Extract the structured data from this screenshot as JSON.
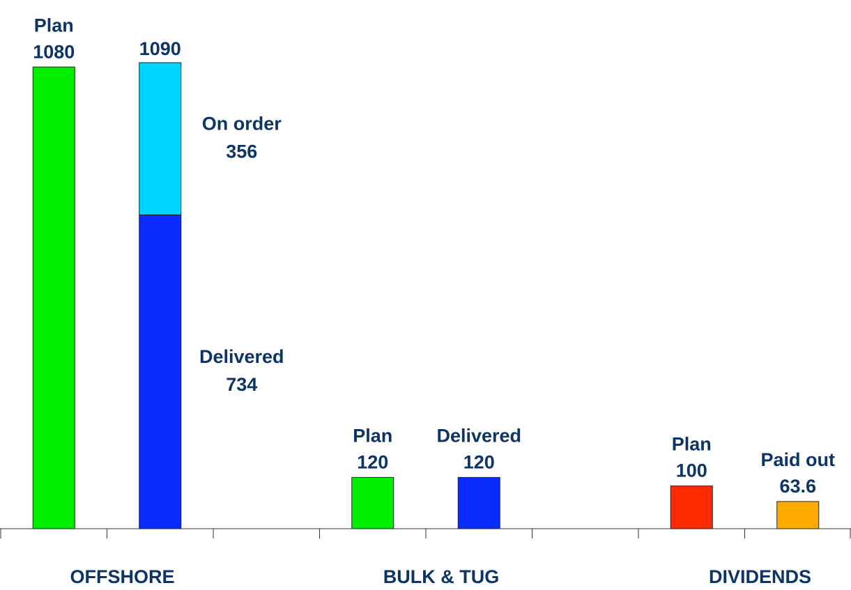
{
  "chart_data": {
    "type": "bar",
    "groups": [
      {
        "name": "OFFSHORE",
        "bars": [
          {
            "segments": [
              {
                "name": "Plan",
                "value": 1080,
                "color": "#00ee00"
              }
            ]
          },
          {
            "total": 1090,
            "segments": [
              {
                "name": "Delivered",
                "value": 734,
                "color": "#0a2cff"
              },
              {
                "name": "On order",
                "value": 356,
                "color": "#00d4ff"
              }
            ]
          }
        ]
      },
      {
        "name": "BULK & TUG",
        "bars": [
          {
            "segments": [
              {
                "name": "Plan",
                "value": 120,
                "color": "#00ee00"
              }
            ]
          },
          {
            "segments": [
              {
                "name": "Delivered",
                "value": 120,
                "color": "#0a2cff"
              }
            ]
          }
        ]
      },
      {
        "name": "DIVIDENDS",
        "bars": [
          {
            "segments": [
              {
                "name": "Plan",
                "value": 100,
                "color": "#ff2a00"
              }
            ]
          },
          {
            "segments": [
              {
                "name": "Paid out",
                "value": 63.6,
                "color": "#ffaa00"
              }
            ]
          }
        ]
      }
    ]
  }
}
